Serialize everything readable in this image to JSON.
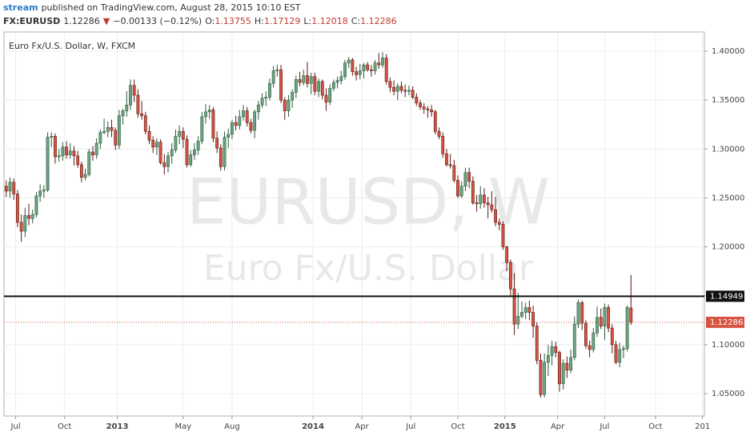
{
  "header": {
    "user": "stream",
    "published": "published on TradingView.com, August 28, 2015 10:10 EST",
    "symbol": "FX:EURUSD",
    "change": "−0.00133 (−0.12%)",
    "ohlc_labels": [
      "O:",
      "H:",
      "L:",
      "C:"
    ]
  },
  "chart_data": {
    "type": "candlestick",
    "title": "Euro Fx/U.S. Dollar, W, FXCM",
    "watermark": "EURUSD, W",
    "watermark_subtitle": "Euro Fx/U.S. Dollar",
    "up_color": "#6ba583",
    "down_color": "#d75442",
    "grid": true,
    "ylim": [
      1.0271,
      1.4196
    ],
    "yticks": [
      {
        "value": 1.05,
        "label": "1.05000"
      },
      {
        "value": 1.1,
        "label": "1.10000"
      },
      {
        "value": 1.15,
        "label": "1.15000"
      },
      {
        "value": 1.2,
        "label": "1.20000"
      },
      {
        "value": 1.25,
        "label": "1.25000"
      },
      {
        "value": 1.3,
        "label": "1.30000"
      },
      {
        "value": 1.35,
        "label": "1.35000"
      },
      {
        "value": 1.4,
        "label": "1.40000"
      }
    ],
    "xlim": [
      -0.6,
      185.5
    ],
    "xticks": [
      {
        "value": 2.5,
        "label": "Jul"
      },
      {
        "value": 15.5,
        "label": "Oct"
      },
      {
        "value": 29.5,
        "label": "2013"
      },
      {
        "value": 47,
        "label": "May"
      },
      {
        "value": 60,
        "label": "Aug"
      },
      {
        "value": 81.5,
        "label": "2014"
      },
      {
        "value": 94.5,
        "label": "Apr"
      },
      {
        "value": 107.5,
        "label": "Jul"
      },
      {
        "value": 120,
        "label": "Oct"
      },
      {
        "value": 132.5,
        "label": "2015"
      },
      {
        "value": 146.5,
        "label": "Apr"
      },
      {
        "value": 159,
        "label": "Jul"
      },
      {
        "value": 172.5,
        "label": "Oct"
      },
      {
        "value": 185,
        "label": "201"
      }
    ],
    "hline": 1.14949,
    "x": [
      0,
      1,
      2,
      3,
      4,
      5,
      6,
      7,
      8,
      9,
      10,
      11,
      12,
      13,
      14,
      15,
      16,
      17,
      18,
      19,
      20,
      21,
      22,
      23,
      24,
      25,
      26,
      27,
      28,
      29,
      30,
      31,
      32,
      33,
      34,
      35,
      36,
      37,
      38,
      39,
      40,
      41,
      42,
      43,
      44,
      45,
      46,
      47,
      48,
      49,
      50,
      51,
      52,
      53,
      54,
      55,
      56,
      57,
      58,
      59,
      60,
      61,
      62,
      63,
      64,
      65,
      66,
      67,
      68,
      69,
      70,
      71,
      72,
      73,
      74,
      75,
      76,
      77,
      78,
      79,
      80,
      81,
      82,
      83,
      84,
      85,
      86,
      87,
      88,
      89,
      90,
      91,
      92,
      93,
      94,
      95,
      96,
      97,
      98,
      99,
      100,
      101,
      102,
      103,
      104,
      105,
      106,
      107,
      108,
      109,
      110,
      111,
      112,
      113,
      114,
      115,
      116,
      117,
      118,
      119,
      120,
      121,
      122,
      123,
      124,
      125,
      126,
      127,
      128,
      129,
      130,
      131,
      132,
      133,
      134,
      135,
      136,
      137,
      138,
      139,
      140,
      141,
      142,
      143,
      144,
      145,
      146,
      147,
      148,
      149,
      150,
      151,
      152,
      153,
      154,
      155,
      156,
      157,
      158,
      159,
      160,
      161,
      162,
      163,
      164,
      165,
      166
    ],
    "ohlc": [
      [
        1.262,
        1.268,
        1.251,
        1.257
      ],
      [
        1.257,
        1.271,
        1.25,
        1.266
      ],
      [
        1.266,
        1.27,
        1.248,
        1.254
      ],
      [
        1.254,
        1.258,
        1.22,
        1.225
      ],
      [
        1.225,
        1.233,
        1.205,
        1.216
      ],
      [
        1.216,
        1.24,
        1.21,
        1.232
      ],
      [
        1.232,
        1.244,
        1.222,
        1.229
      ],
      [
        1.229,
        1.238,
        1.224,
        1.233
      ],
      [
        1.233,
        1.256,
        1.23,
        1.252
      ],
      [
        1.252,
        1.264,
        1.246,
        1.257
      ],
      [
        1.257,
        1.263,
        1.25,
        1.258
      ],
      [
        1.258,
        1.317,
        1.256,
        1.312
      ],
      [
        1.312,
        1.317,
        1.302,
        1.313
      ],
      [
        1.313,
        1.316,
        1.285,
        1.292
      ],
      [
        1.292,
        1.3,
        1.287,
        1.293
      ],
      [
        1.293,
        1.307,
        1.288,
        1.302
      ],
      [
        1.302,
        1.308,
        1.29,
        1.294
      ],
      [
        1.294,
        1.306,
        1.29,
        1.298
      ],
      [
        1.298,
        1.303,
        1.283,
        1.293
      ],
      [
        1.293,
        1.298,
        1.281,
        1.284
      ],
      [
        1.284,
        1.287,
        1.266,
        1.271
      ],
      [
        1.271,
        1.28,
        1.268,
        1.274
      ],
      [
        1.274,
        1.3,
        1.272,
        1.297
      ],
      [
        1.297,
        1.303,
        1.288,
        1.294
      ],
      [
        1.294,
        1.311,
        1.29,
        1.306
      ],
      [
        1.306,
        1.32,
        1.3,
        1.317
      ],
      [
        1.317,
        1.331,
        1.315,
        1.318
      ],
      [
        1.318,
        1.328,
        1.312,
        1.322
      ],
      [
        1.322,
        1.33,
        1.312,
        1.319
      ],
      [
        1.319,
        1.322,
        1.299,
        1.304
      ],
      [
        1.304,
        1.34,
        1.3,
        1.334
      ],
      [
        1.334,
        1.341,
        1.325,
        1.339
      ],
      [
        1.339,
        1.359,
        1.333,
        1.345
      ],
      [
        1.345,
        1.371,
        1.34,
        1.365
      ],
      [
        1.365,
        1.371,
        1.348,
        1.355
      ],
      [
        1.355,
        1.361,
        1.332,
        1.336
      ],
      [
        1.336,
        1.349,
        1.33,
        1.334
      ],
      [
        1.334,
        1.338,
        1.315,
        1.318
      ],
      [
        1.318,
        1.324,
        1.305,
        1.309
      ],
      [
        1.309,
        1.313,
        1.296,
        1.302
      ],
      [
        1.302,
        1.311,
        1.294,
        1.307
      ],
      [
        1.307,
        1.31,
        1.284,
        1.286
      ],
      [
        1.286,
        1.295,
        1.274,
        1.282
      ],
      [
        1.282,
        1.297,
        1.276,
        1.293
      ],
      [
        1.293,
        1.306,
        1.285,
        1.299
      ],
      [
        1.299,
        1.32,
        1.296,
        1.313
      ],
      [
        1.313,
        1.324,
        1.305,
        1.318
      ],
      [
        1.318,
        1.322,
        1.301,
        1.31
      ],
      [
        1.31,
        1.314,
        1.281,
        1.284
      ],
      [
        1.284,
        1.299,
        1.282,
        1.294
      ],
      [
        1.294,
        1.306,
        1.289,
        1.299
      ],
      [
        1.299,
        1.313,
        1.294,
        1.308
      ],
      [
        1.308,
        1.338,
        1.305,
        1.333
      ],
      [
        1.333,
        1.346,
        1.326,
        1.338
      ],
      [
        1.338,
        1.345,
        1.331,
        1.34
      ],
      [
        1.34,
        1.343,
        1.307,
        1.311
      ],
      [
        1.311,
        1.318,
        1.296,
        1.301
      ],
      [
        1.301,
        1.305,
        1.278,
        1.282
      ],
      [
        1.282,
        1.318,
        1.278,
        1.312
      ],
      [
        1.312,
        1.321,
        1.301,
        1.315
      ],
      [
        1.315,
        1.33,
        1.31,
        1.327
      ],
      [
        1.327,
        1.334,
        1.319,
        1.324
      ],
      [
        1.324,
        1.34,
        1.32,
        1.333
      ],
      [
        1.333,
        1.345,
        1.329,
        1.339
      ],
      [
        1.339,
        1.343,
        1.323,
        1.327
      ],
      [
        1.327,
        1.331,
        1.316,
        1.319
      ],
      [
        1.319,
        1.34,
        1.311,
        1.338
      ],
      [
        1.338,
        1.349,
        1.33,
        1.345
      ],
      [
        1.345,
        1.357,
        1.342,
        1.352
      ],
      [
        1.352,
        1.359,
        1.344,
        1.353
      ],
      [
        1.353,
        1.372,
        1.35,
        1.367
      ],
      [
        1.367,
        1.385,
        1.363,
        1.38
      ],
      [
        1.38,
        1.386,
        1.374,
        1.381
      ],
      [
        1.381,
        1.386,
        1.347,
        1.35
      ],
      [
        1.35,
        1.353,
        1.33,
        1.339
      ],
      [
        1.339,
        1.355,
        1.333,
        1.35
      ],
      [
        1.35,
        1.361,
        1.342,
        1.358
      ],
      [
        1.358,
        1.375,
        1.352,
        1.371
      ],
      [
        1.371,
        1.379,
        1.364,
        1.368
      ],
      [
        1.368,
        1.381,
        1.365,
        1.375
      ],
      [
        1.375,
        1.389,
        1.363,
        1.367
      ],
      [
        1.367,
        1.378,
        1.356,
        1.374
      ],
      [
        1.374,
        1.378,
        1.355,
        1.359
      ],
      [
        1.359,
        1.372,
        1.353,
        1.369
      ],
      [
        1.369,
        1.371,
        1.351,
        1.355
      ],
      [
        1.355,
        1.362,
        1.339,
        1.348
      ],
      [
        1.348,
        1.366,
        1.345,
        1.362
      ],
      [
        1.362,
        1.371,
        1.359,
        1.368
      ],
      [
        1.368,
        1.374,
        1.362,
        1.37
      ],
      [
        1.37,
        1.38,
        1.366,
        1.374
      ],
      [
        1.374,
        1.391,
        1.371,
        1.388
      ],
      [
        1.388,
        1.394,
        1.383,
        1.391
      ],
      [
        1.391,
        1.393,
        1.375,
        1.379
      ],
      [
        1.379,
        1.384,
        1.37,
        1.376
      ],
      [
        1.376,
        1.387,
        1.371,
        1.38
      ],
      [
        1.38,
        1.388,
        1.372,
        1.386
      ],
      [
        1.386,
        1.389,
        1.379,
        1.381
      ],
      [
        1.381,
        1.386,
        1.374,
        1.38
      ],
      [
        1.38,
        1.391,
        1.376,
        1.388
      ],
      [
        1.388,
        1.398,
        1.382,
        1.386
      ],
      [
        1.386,
        1.399,
        1.383,
        1.393
      ],
      [
        1.393,
        1.397,
        1.366,
        1.369
      ],
      [
        1.369,
        1.373,
        1.358,
        1.363
      ],
      [
        1.363,
        1.37,
        1.355,
        1.359
      ],
      [
        1.359,
        1.367,
        1.35,
        1.364
      ],
      [
        1.364,
        1.369,
        1.357,
        1.36
      ],
      [
        1.36,
        1.366,
        1.353,
        1.359
      ],
      [
        1.359,
        1.365,
        1.355,
        1.36
      ],
      [
        1.36,
        1.364,
        1.351,
        1.353
      ],
      [
        1.353,
        1.357,
        1.344,
        1.347
      ],
      [
        1.347,
        1.35,
        1.34,
        1.343
      ],
      [
        1.343,
        1.347,
        1.336,
        1.341
      ],
      [
        1.341,
        1.344,
        1.332,
        1.34
      ],
      [
        1.34,
        1.345,
        1.333,
        1.338
      ],
      [
        1.338,
        1.34,
        1.315,
        1.318
      ],
      [
        1.318,
        1.322,
        1.31,
        1.313
      ],
      [
        1.313,
        1.317,
        1.291,
        1.295
      ],
      [
        1.295,
        1.3,
        1.282,
        1.284
      ],
      [
        1.284,
        1.295,
        1.28,
        1.283
      ],
      [
        1.283,
        1.289,
        1.266,
        1.268
      ],
      [
        1.268,
        1.273,
        1.25,
        1.252
      ],
      [
        1.252,
        1.267,
        1.25,
        1.262
      ],
      [
        1.262,
        1.281,
        1.257,
        1.276
      ],
      [
        1.276,
        1.281,
        1.26,
        1.267
      ],
      [
        1.267,
        1.272,
        1.243,
        1.245
      ],
      [
        1.245,
        1.253,
        1.236,
        1.244
      ],
      [
        1.244,
        1.262,
        1.239,
        1.253
      ],
      [
        1.253,
        1.26,
        1.24,
        1.245
      ],
      [
        1.245,
        1.251,
        1.229,
        1.243
      ],
      [
        1.243,
        1.257,
        1.235,
        1.238
      ],
      [
        1.238,
        1.251,
        1.221,
        1.225
      ],
      [
        1.225,
        1.229,
        1.217,
        1.223
      ],
      [
        1.223,
        1.226,
        1.197,
        1.2
      ],
      [
        1.2,
        1.201,
        1.175,
        1.184
      ],
      [
        1.184,
        1.187,
        1.15,
        1.157
      ],
      [
        1.157,
        1.173,
        1.11,
        1.121
      ],
      [
        1.121,
        1.153,
        1.116,
        1.129
      ],
      [
        1.129,
        1.144,
        1.127,
        1.133
      ],
      [
        1.133,
        1.143,
        1.126,
        1.138
      ],
      [
        1.138,
        1.145,
        1.125,
        1.133
      ],
      [
        1.133,
        1.14,
        1.107,
        1.119
      ],
      [
        1.119,
        1.123,
        1.08,
        1.084
      ],
      [
        1.084,
        1.091,
        1.046,
        1.049
      ],
      [
        1.049,
        1.091,
        1.046,
        1.082
      ],
      [
        1.082,
        1.1,
        1.068,
        1.089
      ],
      [
        1.089,
        1.104,
        1.079,
        1.098
      ],
      [
        1.098,
        1.103,
        1.087,
        1.092
      ],
      [
        1.092,
        1.094,
        1.052,
        1.06
      ],
      [
        1.06,
        1.085,
        1.054,
        1.081
      ],
      [
        1.081,
        1.088,
        1.066,
        1.074
      ],
      [
        1.074,
        1.095,
        1.071,
        1.087
      ],
      [
        1.087,
        1.129,
        1.084,
        1.121
      ],
      [
        1.121,
        1.146,
        1.117,
        1.143
      ],
      [
        1.143,
        1.145,
        1.115,
        1.122
      ],
      [
        1.122,
        1.125,
        1.096,
        1.099
      ],
      [
        1.099,
        1.104,
        1.087,
        1.095
      ],
      [
        1.095,
        1.117,
        1.092,
        1.112
      ],
      [
        1.112,
        1.139,
        1.108,
        1.128
      ],
      [
        1.128,
        1.137,
        1.116,
        1.119
      ],
      [
        1.119,
        1.142,
        1.105,
        1.138
      ],
      [
        1.138,
        1.141,
        1.113,
        1.117
      ],
      [
        1.117,
        1.121,
        1.091,
        1.1
      ],
      [
        1.1,
        1.104,
        1.08,
        1.082
      ],
      [
        1.082,
        1.102,
        1.077,
        1.095
      ],
      [
        1.095,
        1.099,
        1.086,
        1.096
      ],
      [
        1.096,
        1.14,
        1.093,
        1.138
      ],
      [
        1.13755,
        1.17129,
        1.12018,
        1.12286
      ]
    ]
  }
}
